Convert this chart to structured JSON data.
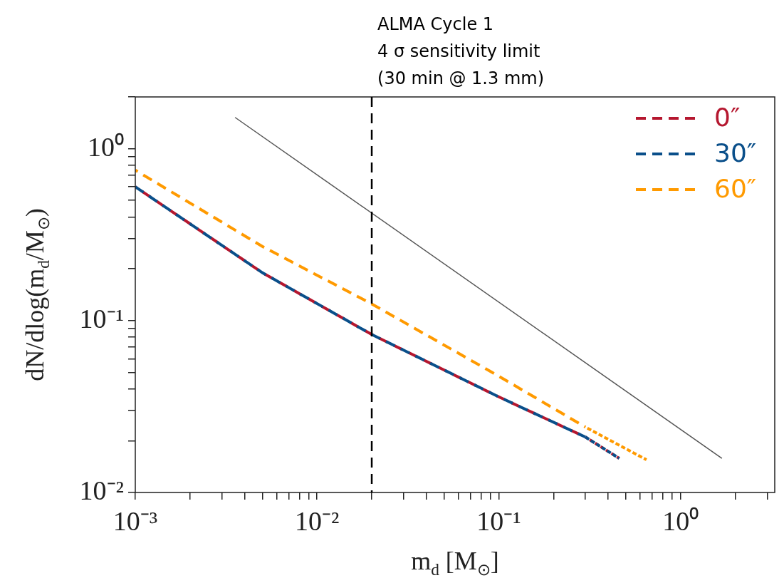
{
  "chart_data": {
    "type": "line",
    "xlabel": "m$_{d}$ [M$_{⊙}$]",
    "ylabel": "dN/dlog(m$_{d}$/M$_{⊙}$)",
    "log": "xy",
    "xlim": [
      0.001,
      3.3
    ],
    "ylim": [
      0.01,
      2
    ],
    "xticks": [
      {
        "value": 0.001,
        "label": "10⁻³"
      },
      {
        "value": 0.002,
        "label": null
      },
      {
        "value": 0.003,
        "label": null
      },
      {
        "value": 0.004,
        "label": null
      },
      {
        "value": 0.005,
        "label": null
      },
      {
        "value": 0.006,
        "label": null
      },
      {
        "value": 0.007,
        "label": null
      },
      {
        "value": 0.008,
        "label": null
      },
      {
        "value": 0.009,
        "label": null
      },
      {
        "value": 0.01,
        "label": "10⁻²"
      },
      {
        "value": 0.02,
        "label": null
      },
      {
        "value": 0.03,
        "label": null
      },
      {
        "value": 0.04,
        "label": null
      },
      {
        "value": 0.05,
        "label": null
      },
      {
        "value": 0.06,
        "label": null
      },
      {
        "value": 0.07,
        "label": null
      },
      {
        "value": 0.08,
        "label": null
      },
      {
        "value": 0.09,
        "label": null
      },
      {
        "value": 0.1,
        "label": "10⁻¹"
      },
      {
        "value": 0.2,
        "label": null
      },
      {
        "value": 0.3,
        "label": null
      },
      {
        "value": 0.4,
        "label": null
      },
      {
        "value": 0.5,
        "label": null
      },
      {
        "value": 0.6,
        "label": null
      },
      {
        "value": 0.7,
        "label": null
      },
      {
        "value": 0.8,
        "label": null
      },
      {
        "value": 0.9,
        "label": null
      },
      {
        "value": 1,
        "label": "10⁰"
      },
      {
        "value": 2,
        "label": null
      },
      {
        "value": 3,
        "label": null
      }
    ],
    "yticks": [
      {
        "value": 0.01,
        "label": "10⁻²"
      },
      {
        "value": 0.02,
        "label": null
      },
      {
        "value": 0.03,
        "label": null
      },
      {
        "value": 0.04,
        "label": null
      },
      {
        "value": 0.05,
        "label": null
      },
      {
        "value": 0.06,
        "label": null
      },
      {
        "value": 0.07,
        "label": null
      },
      {
        "value": 0.08,
        "label": null
      },
      {
        "value": 0.09,
        "label": null
      },
      {
        "value": 0.1,
        "label": "10⁻¹"
      },
      {
        "value": 0.2,
        "label": null
      },
      {
        "value": 0.3,
        "label": null
      },
      {
        "value": 0.4,
        "label": null
      },
      {
        "value": 0.5,
        "label": null
      },
      {
        "value": 0.6,
        "label": null
      },
      {
        "value": 0.7,
        "label": null
      },
      {
        "value": 0.8,
        "label": null
      },
      {
        "value": 0.9,
        "label": null
      },
      {
        "value": 1,
        "label": "10⁰"
      },
      {
        "value": 2,
        "label": null
      }
    ],
    "legend": "top right",
    "ref_lines": [
      {
        "axis": "x",
        "value": 0.02,
        "label": "ALMA Cycle 1\n4 σ sensitivity limit\n(30 min @ 1.3 mm)",
        "color": "#000000",
        "line_style": "dashed"
      }
    ],
    "series": [
      {
        "color": "#555555",
        "line_style": "solid",
        "x": [
          0.00354,
          1.69
        ],
        "values": [
          1.52,
          0.0158
        ]
      },
      {
        "name": "0″",
        "color": "#b5172f",
        "line_style": "dashed",
        "x": [
          0.001,
          0.005,
          0.02,
          0.1,
          0.3,
          0.46
        ],
        "values": [
          0.6,
          0.19,
          0.083,
          0.036,
          0.021,
          0.0158
        ]
      },
      {
        "name": "30″",
        "color": "#0a4f8a",
        "line_style": "dashed",
        "x": [
          0.001,
          0.005,
          0.02,
          0.1,
          0.3,
          0.46
        ],
        "values": [
          0.6,
          0.19,
          0.083,
          0.036,
          0.021,
          0.0158
        ]
      },
      {
        "name": "60″",
        "color": "#ff9a00",
        "line_style": "dashed",
        "x": [
          0.001,
          0.005,
          0.02,
          0.1,
          0.3,
          0.65
        ],
        "values": [
          0.75,
          0.27,
          0.125,
          0.0475,
          0.024,
          0.0155
        ]
      }
    ]
  }
}
